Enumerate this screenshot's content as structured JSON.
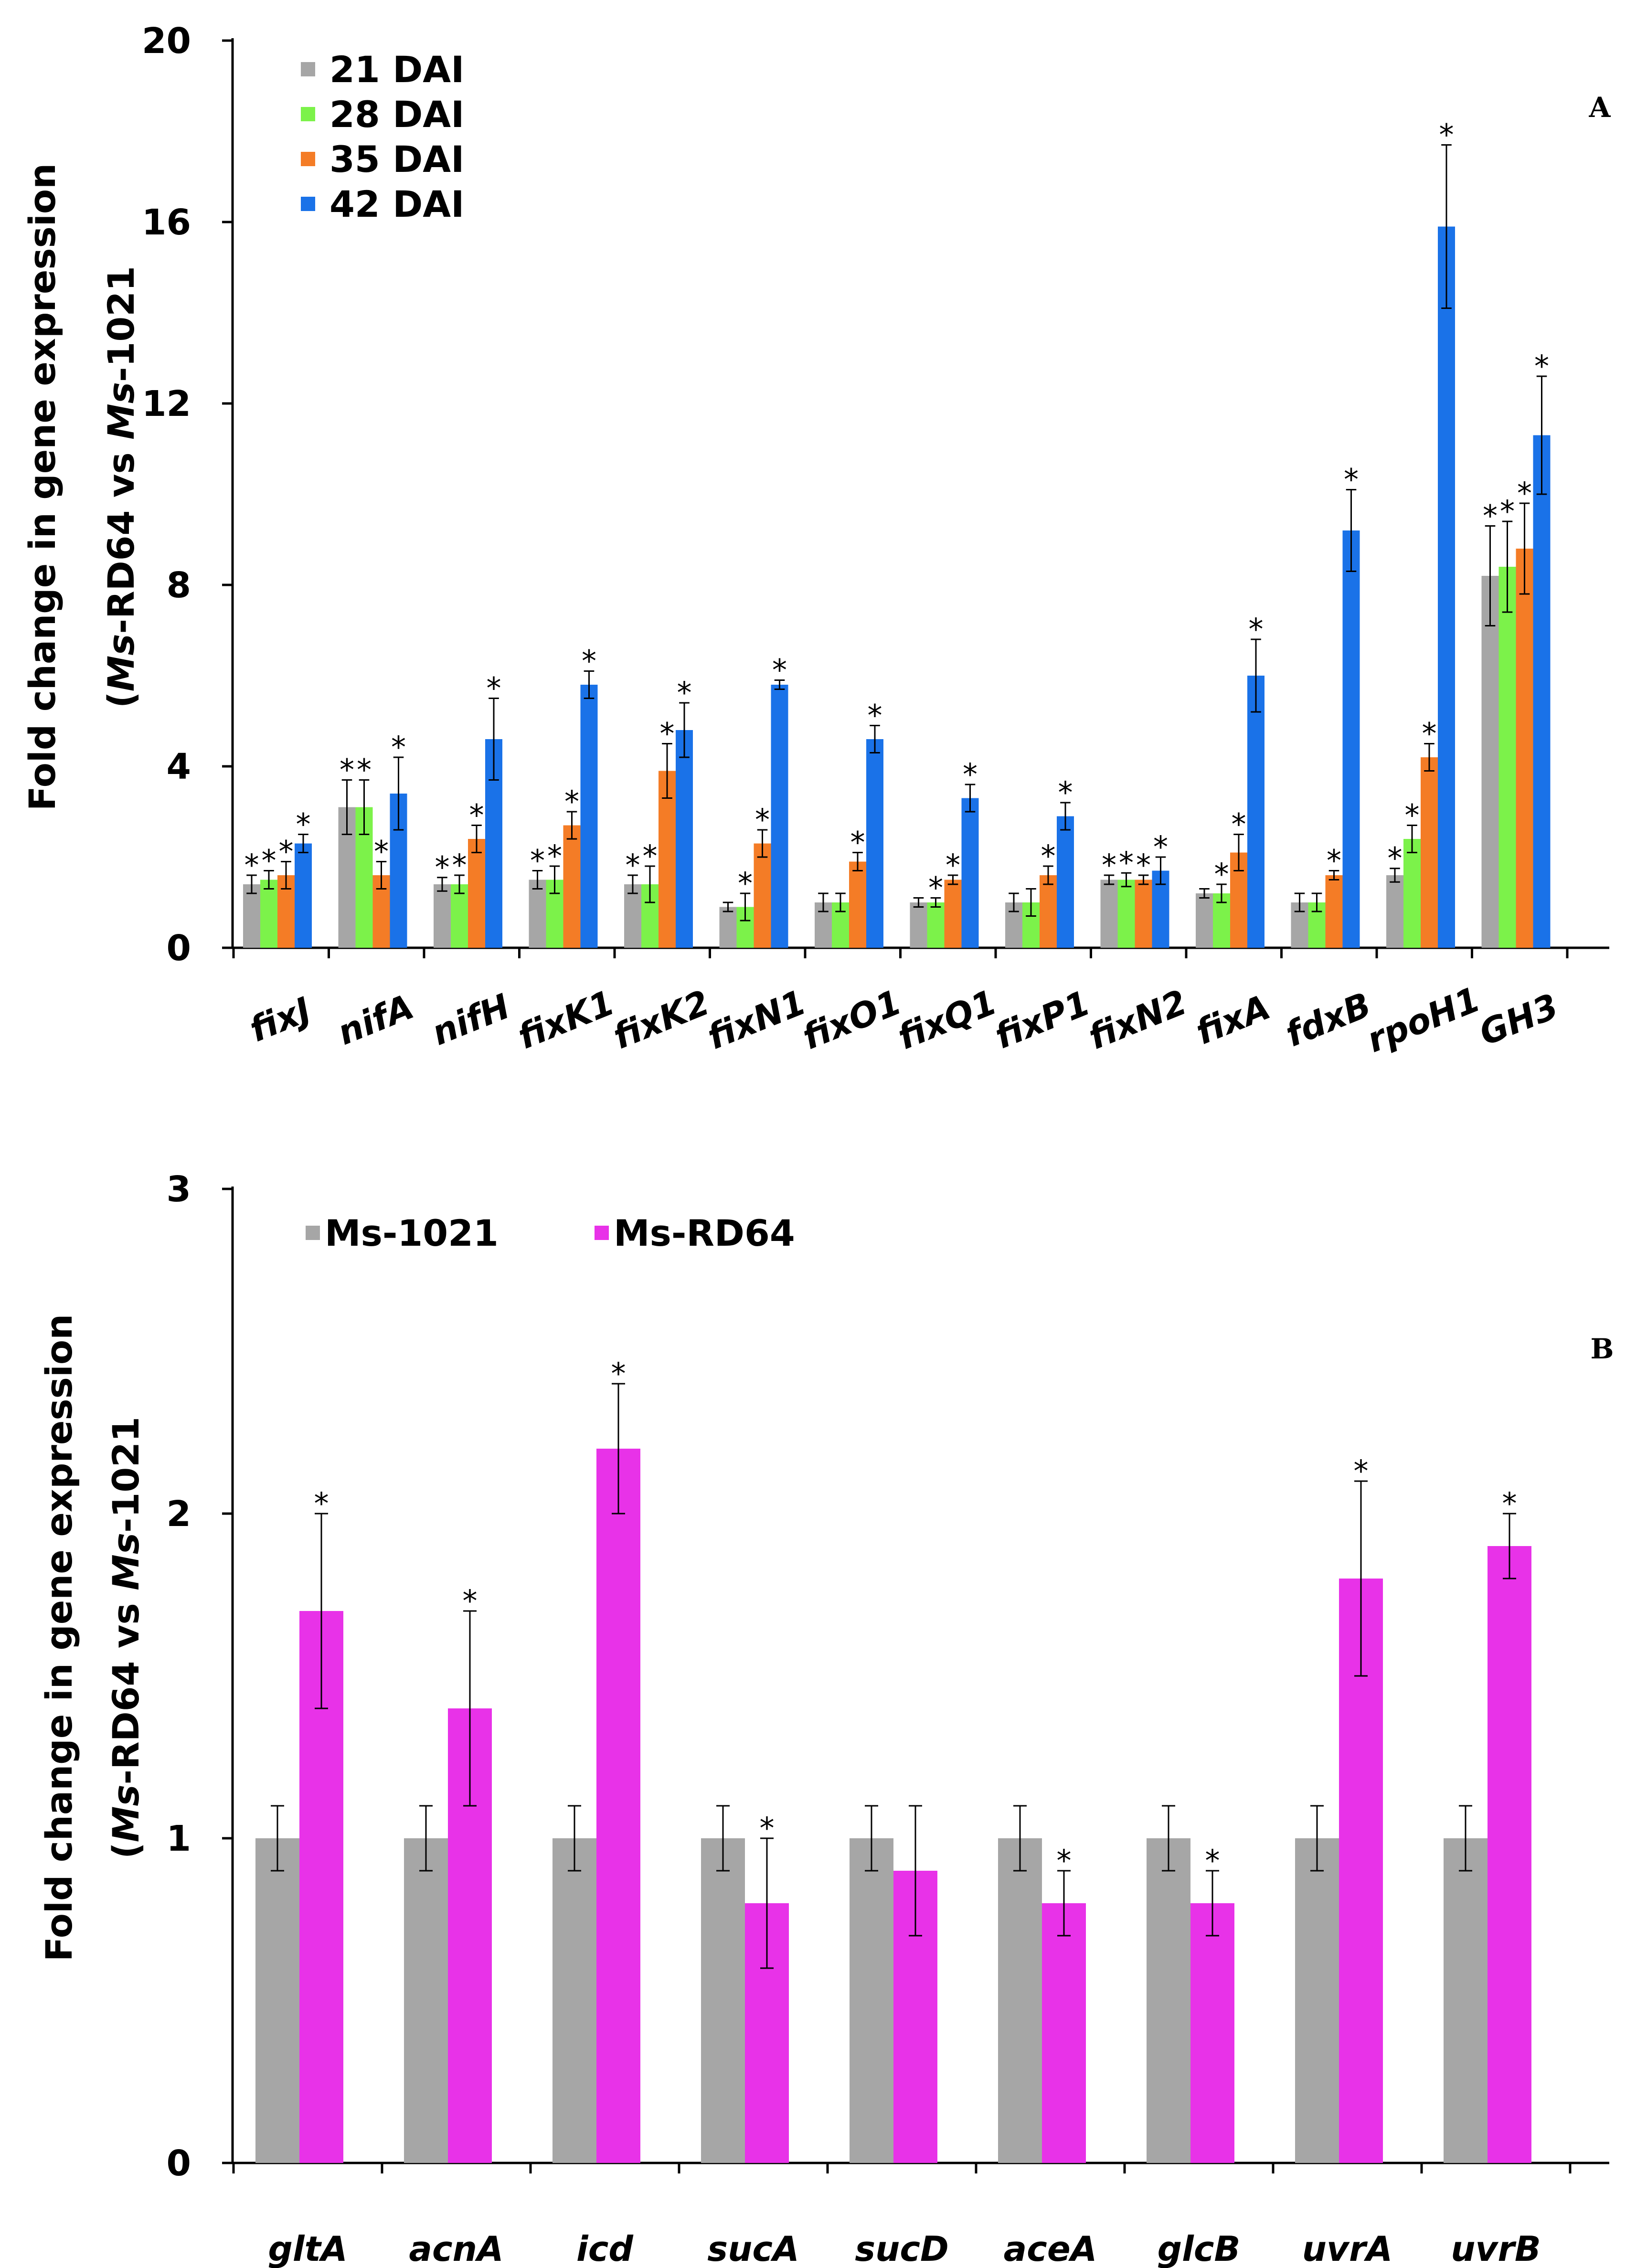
{
  "chart_data": [
    {
      "id": "A",
      "type": "bar",
      "panel_label": "A",
      "ylabel_line1": "Fold change in gene expression",
      "ylabel_line2_parts": [
        "(",
        "Ms",
        "-RD64 vs ",
        "Ms",
        "-1021"
      ],
      "ylim": [
        0,
        20
      ],
      "yticks": [
        0,
        4,
        8,
        12,
        16,
        20
      ],
      "legend_position": "top-left",
      "categories": [
        "fixJ",
        "nifA",
        "nifH",
        "fixK1",
        "fixK2",
        "fixN1",
        "fixO1",
        "fixQ1",
        "fixP1",
        "fixN2",
        "fixA",
        "fdxB",
        "rpoH1",
        "GH3"
      ],
      "series": [
        {
          "name": "21 DAI",
          "color": "#a6a6a6",
          "values": [
            1.4,
            3.1,
            1.4,
            1.5,
            1.4,
            0.9,
            1.0,
            1.0,
            1.0,
            1.5,
            1.2,
            1.0,
            1.6,
            8.2
          ],
          "errors": [
            0.2,
            0.6,
            0.15,
            0.2,
            0.2,
            0.1,
            0.2,
            0.1,
            0.2,
            0.1,
            0.1,
            0.2,
            0.15,
            1.1
          ],
          "sig": [
            true,
            true,
            true,
            true,
            true,
            false,
            false,
            false,
            false,
            true,
            false,
            false,
            true,
            true
          ]
        },
        {
          "name": "28 DAI",
          "color": "#7cf24a",
          "values": [
            1.5,
            3.1,
            1.4,
            1.5,
            1.4,
            0.9,
            1.0,
            1.0,
            1.0,
            1.5,
            1.2,
            1.0,
            2.4,
            8.4
          ],
          "errors": [
            0.2,
            0.6,
            0.2,
            0.3,
            0.4,
            0.3,
            0.2,
            0.1,
            0.3,
            0.15,
            0.2,
            0.2,
            0.3,
            1.0
          ],
          "sig": [
            true,
            true,
            true,
            true,
            true,
            true,
            false,
            true,
            false,
            true,
            true,
            false,
            true,
            true
          ]
        },
        {
          "name": "35 DAI",
          "color": "#f47c26",
          "values": [
            1.6,
            1.6,
            2.4,
            2.7,
            3.9,
            2.3,
            1.9,
            1.5,
            1.6,
            1.5,
            2.1,
            1.6,
            4.2,
            8.8
          ],
          "errors": [
            0.3,
            0.3,
            0.3,
            0.3,
            0.6,
            0.3,
            0.2,
            0.1,
            0.2,
            0.1,
            0.4,
            0.1,
            0.3,
            1.0
          ],
          "sig": [
            true,
            true,
            true,
            true,
            true,
            true,
            true,
            true,
            true,
            true,
            true,
            true,
            true,
            true
          ]
        },
        {
          "name": "42 DAI",
          "color": "#1a72e8",
          "values": [
            2.3,
            3.4,
            4.6,
            5.8,
            4.8,
            5.8,
            4.6,
            3.3,
            2.9,
            1.7,
            6.0,
            9.2,
            15.9,
            11.3
          ],
          "errors": [
            0.2,
            0.8,
            0.9,
            0.3,
            0.6,
            0.1,
            0.3,
            0.3,
            0.3,
            0.3,
            0.8,
            0.9,
            1.8,
            1.3
          ],
          "sig": [
            true,
            true,
            true,
            true,
            true,
            true,
            true,
            true,
            true,
            true,
            true,
            true,
            true,
            true
          ]
        }
      ]
    },
    {
      "id": "B",
      "type": "bar",
      "panel_label": "B",
      "ylabel_line1": "Fold change in gene expression",
      "ylabel_line2_parts": [
        "(",
        "Ms",
        "-RD64 vs ",
        "Ms",
        "-1021"
      ],
      "ylim": [
        0,
        3
      ],
      "yticks": [
        0,
        1,
        2,
        3
      ],
      "legend_position": "top-left",
      "categories": [
        "gltA",
        "acnA",
        "icd",
        "sucA",
        "sucD",
        "aceA",
        "glcB",
        "uvrA",
        "uvrB"
      ],
      "series": [
        {
          "name": "Ms-1021",
          "color": "#a6a6a6",
          "values": [
            1.0,
            1.0,
            1.0,
            1.0,
            1.0,
            1.0,
            1.0,
            1.0,
            1.0
          ],
          "errors": [
            0.1,
            0.1,
            0.1,
            0.1,
            0.1,
            0.1,
            0.1,
            0.1,
            0.1
          ],
          "sig": [
            false,
            false,
            false,
            false,
            false,
            false,
            false,
            false,
            false
          ]
        },
        {
          "name": "Ms-RD64",
          "color": "#e832e8",
          "values": [
            1.7,
            1.4,
            2.2,
            0.8,
            0.9,
            0.8,
            0.8,
            1.8,
            1.9
          ],
          "errors": [
            0.3,
            0.3,
            0.2,
            0.2,
            0.2,
            0.1,
            0.1,
            0.3,
            0.1
          ],
          "sig": [
            true,
            true,
            true,
            true,
            false,
            true,
            true,
            true,
            true
          ]
        }
      ]
    }
  ]
}
